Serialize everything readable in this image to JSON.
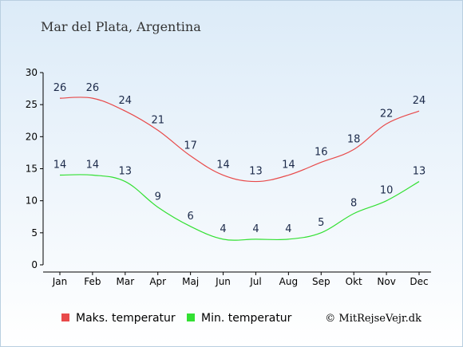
{
  "chart_data": {
    "type": "line",
    "title": "Mar del Plata, Argentina",
    "categories": [
      "Jan",
      "Feb",
      "Mar",
      "Apr",
      "Maj",
      "Jun",
      "Jul",
      "Aug",
      "Sep",
      "Okt",
      "Nov",
      "Dec"
    ],
    "ylim": [
      0,
      30
    ],
    "yticks": [
      0,
      5,
      10,
      15,
      20,
      25,
      30
    ],
    "grid": false,
    "legend_placement": "bottom",
    "series": [
      {
        "name": "Maks. temperatur",
        "color": "#e84a4a",
        "values": [
          26,
          26,
          24,
          21,
          17,
          14,
          13,
          14,
          16,
          18,
          22,
          24
        ]
      },
      {
        "name": "Min. temperatur",
        "color": "#33e033",
        "values": [
          14,
          14,
          13,
          9,
          6,
          4,
          4,
          4,
          5,
          8,
          10,
          13
        ]
      }
    ]
  },
  "credit": "© MitRejseVejr.dk"
}
